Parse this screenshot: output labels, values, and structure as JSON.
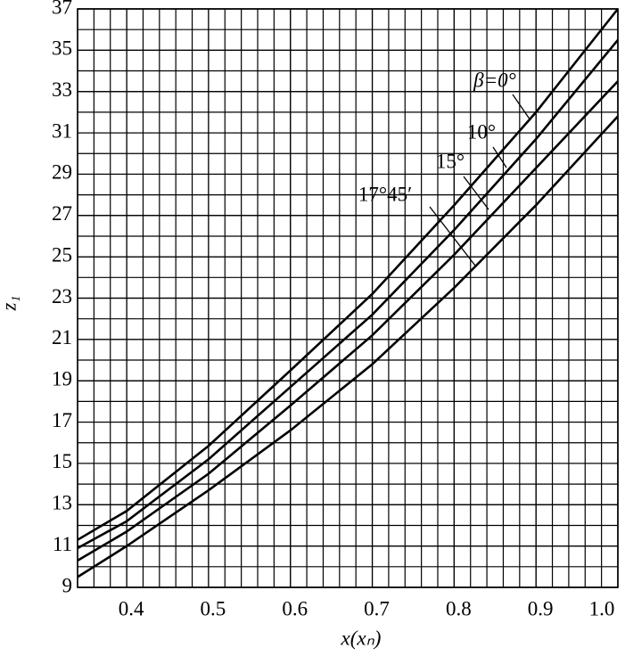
{
  "chart_data": {
    "type": "line",
    "xlabel": "x(xₙ)",
    "ylabel": "z₁",
    "x": [
      0.34,
      0.4,
      0.5,
      0.6,
      0.7,
      0.8,
      0.9,
      1.0
    ],
    "series": [
      {
        "name": "β=0°",
        "color": "#000000",
        "values": [
          11.3,
          12.7,
          15.85,
          19.5,
          23.2,
          27.5,
          32.0,
          37.0
        ]
      },
      {
        "name": "10°",
        "color": "#000000",
        "values": [
          10.9,
          12.2,
          15.2,
          18.7,
          22.2,
          26.3,
          30.7,
          35.5
        ]
      },
      {
        "name": "15°",
        "color": "#000000",
        "values": [
          10.3,
          11.7,
          14.5,
          17.8,
          21.2,
          25.1,
          29.3,
          33.5
        ]
      },
      {
        "name": "17°45′",
        "color": "#000000",
        "values": [
          9.5,
          11.0,
          13.7,
          16.6,
          19.8,
          23.5,
          27.5,
          31.8
        ]
      }
    ],
    "xlim": [
      0.34,
      1.0
    ],
    "ylim": [
      9,
      37
    ],
    "xticks": [
      0.4,
      0.5,
      0.6,
      0.7,
      0.8,
      0.9,
      {
        "value": 1.0,
        "label": "1.0"
      }
    ],
    "yticks": [
      9,
      11,
      13,
      15,
      17,
      19,
      21,
      23,
      25,
      27,
      29,
      31,
      33,
      35,
      37
    ],
    "grid": true,
    "x_grid_step": 0.02,
    "y_grid_step": 1
  }
}
